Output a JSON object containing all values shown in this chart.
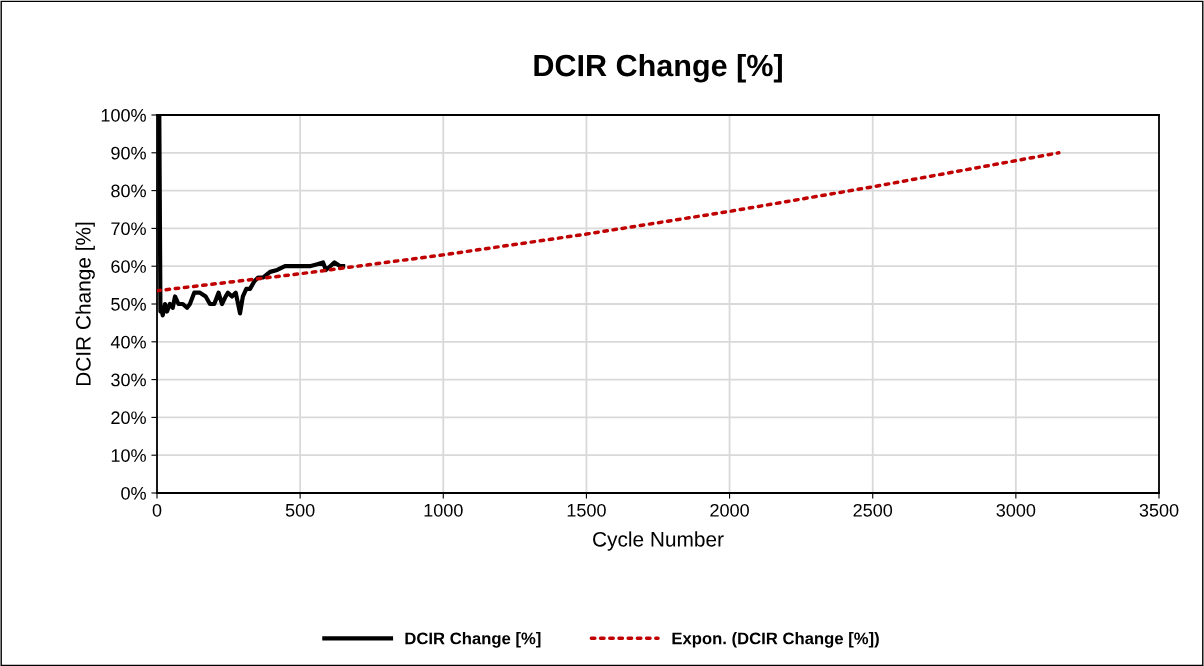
{
  "chart_data": {
    "type": "line",
    "title": "DCIR Change [%]",
    "xlabel": "Cycle Number",
    "ylabel": "DCIR Change [%]",
    "series": [
      {
        "name": "DCIR Change [%]",
        "color": "#000000",
        "line_style": "solid",
        "x": [
          3,
          8,
          12,
          15,
          20,
          28,
          35,
          45,
          55,
          63,
          75,
          90,
          105,
          115,
          130,
          150,
          170,
          185,
          200,
          215,
          227,
          240,
          248,
          262,
          275,
          290,
          300,
          312,
          325,
          340,
          353,
          370,
          395,
          420,
          447,
          480,
          510,
          534,
          560,
          580,
          590,
          605,
          620,
          640,
          650
        ],
        "values": [
          100,
          100,
          48,
          49,
          47,
          50,
          48,
          50,
          49,
          52,
          50,
          50,
          49,
          50,
          53,
          53,
          52,
          50,
          50,
          53,
          50,
          52,
          53,
          52,
          53,
          47.5,
          52,
          54,
          54,
          56,
          57,
          57,
          58.5,
          59,
          60,
          60,
          60,
          60,
          60.5,
          61,
          59,
          60,
          61,
          60,
          60
        ]
      },
      {
        "name": "Expon. (DCIR Change [%])",
        "color": "#c00000",
        "line_style": "dotted",
        "x": [
          0,
          500,
          1000,
          1500,
          2000,
          2500,
          3150
        ],
        "values": [
          53.5,
          58.0,
          63.0,
          68.5,
          74.5,
          81.0,
          90.0
        ]
      }
    ],
    "xlim": [
      0,
      3500
    ],
    "xticks": [
      0,
      500,
      1000,
      1500,
      2000,
      2500,
      3000,
      3500
    ],
    "ylim": [
      0,
      100
    ],
    "yticks": [
      {
        "value": 0,
        "label": "0%"
      },
      {
        "value": 10,
        "label": "10%"
      },
      {
        "value": 20,
        "label": "20%"
      },
      {
        "value": 30,
        "label": "30%"
      },
      {
        "value": 40,
        "label": "40%"
      },
      {
        "value": 50,
        "label": "50%"
      },
      {
        "value": 60,
        "label": "60%"
      },
      {
        "value": 70,
        "label": "70%"
      },
      {
        "value": 80,
        "label": "80%"
      },
      {
        "value": 90,
        "label": "90%"
      },
      {
        "value": 100,
        "label": "100%"
      }
    ],
    "grid": true,
    "legend": "bottom",
    "marker": "none"
  }
}
